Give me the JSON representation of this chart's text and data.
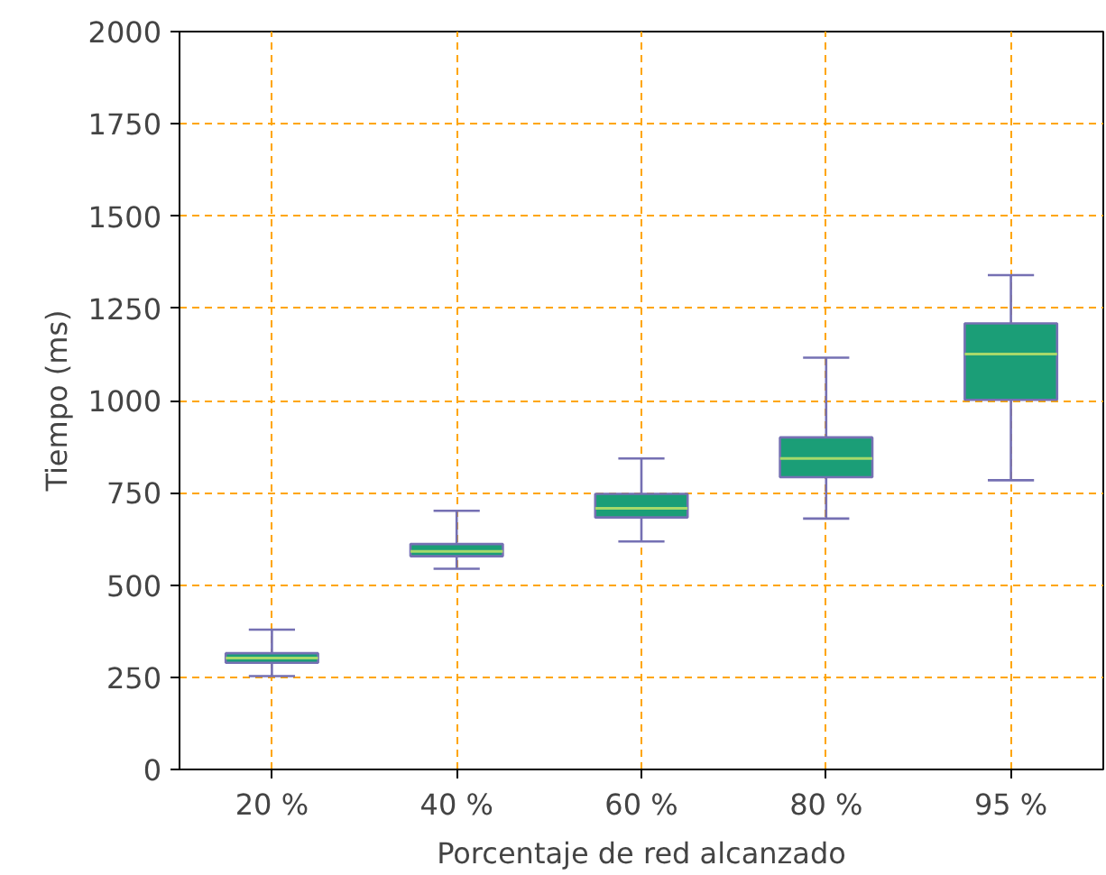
{
  "chart_data": {
    "type": "box",
    "xlabel": "Porcentaje de red alcanzado",
    "ylabel": "Tiempo (ms)",
    "categories": [
      "20 %",
      "40 %",
      "60 %",
      "80 %",
      "95 %"
    ],
    "boxes": [
      {
        "low": 253,
        "q1": 289,
        "median": 302,
        "q3": 315,
        "high": 379
      },
      {
        "low": 544,
        "q1": 578,
        "median": 591,
        "q3": 611,
        "high": 701
      },
      {
        "low": 618,
        "q1": 683,
        "median": 708,
        "q3": 747,
        "high": 843
      },
      {
        "low": 680,
        "q1": 792,
        "median": 843,
        "q3": 900,
        "high": 1116
      },
      {
        "low": 784,
        "q1": 1002,
        "median": 1126,
        "q3": 1209,
        "high": 1340
      }
    ],
    "color": "#1b9e77",
    "ylim": [
      0,
      2000
    ],
    "yticks": [
      0,
      250,
      500,
      750,
      1000,
      1250,
      1500,
      1750,
      2000
    ],
    "grid": true
  }
}
